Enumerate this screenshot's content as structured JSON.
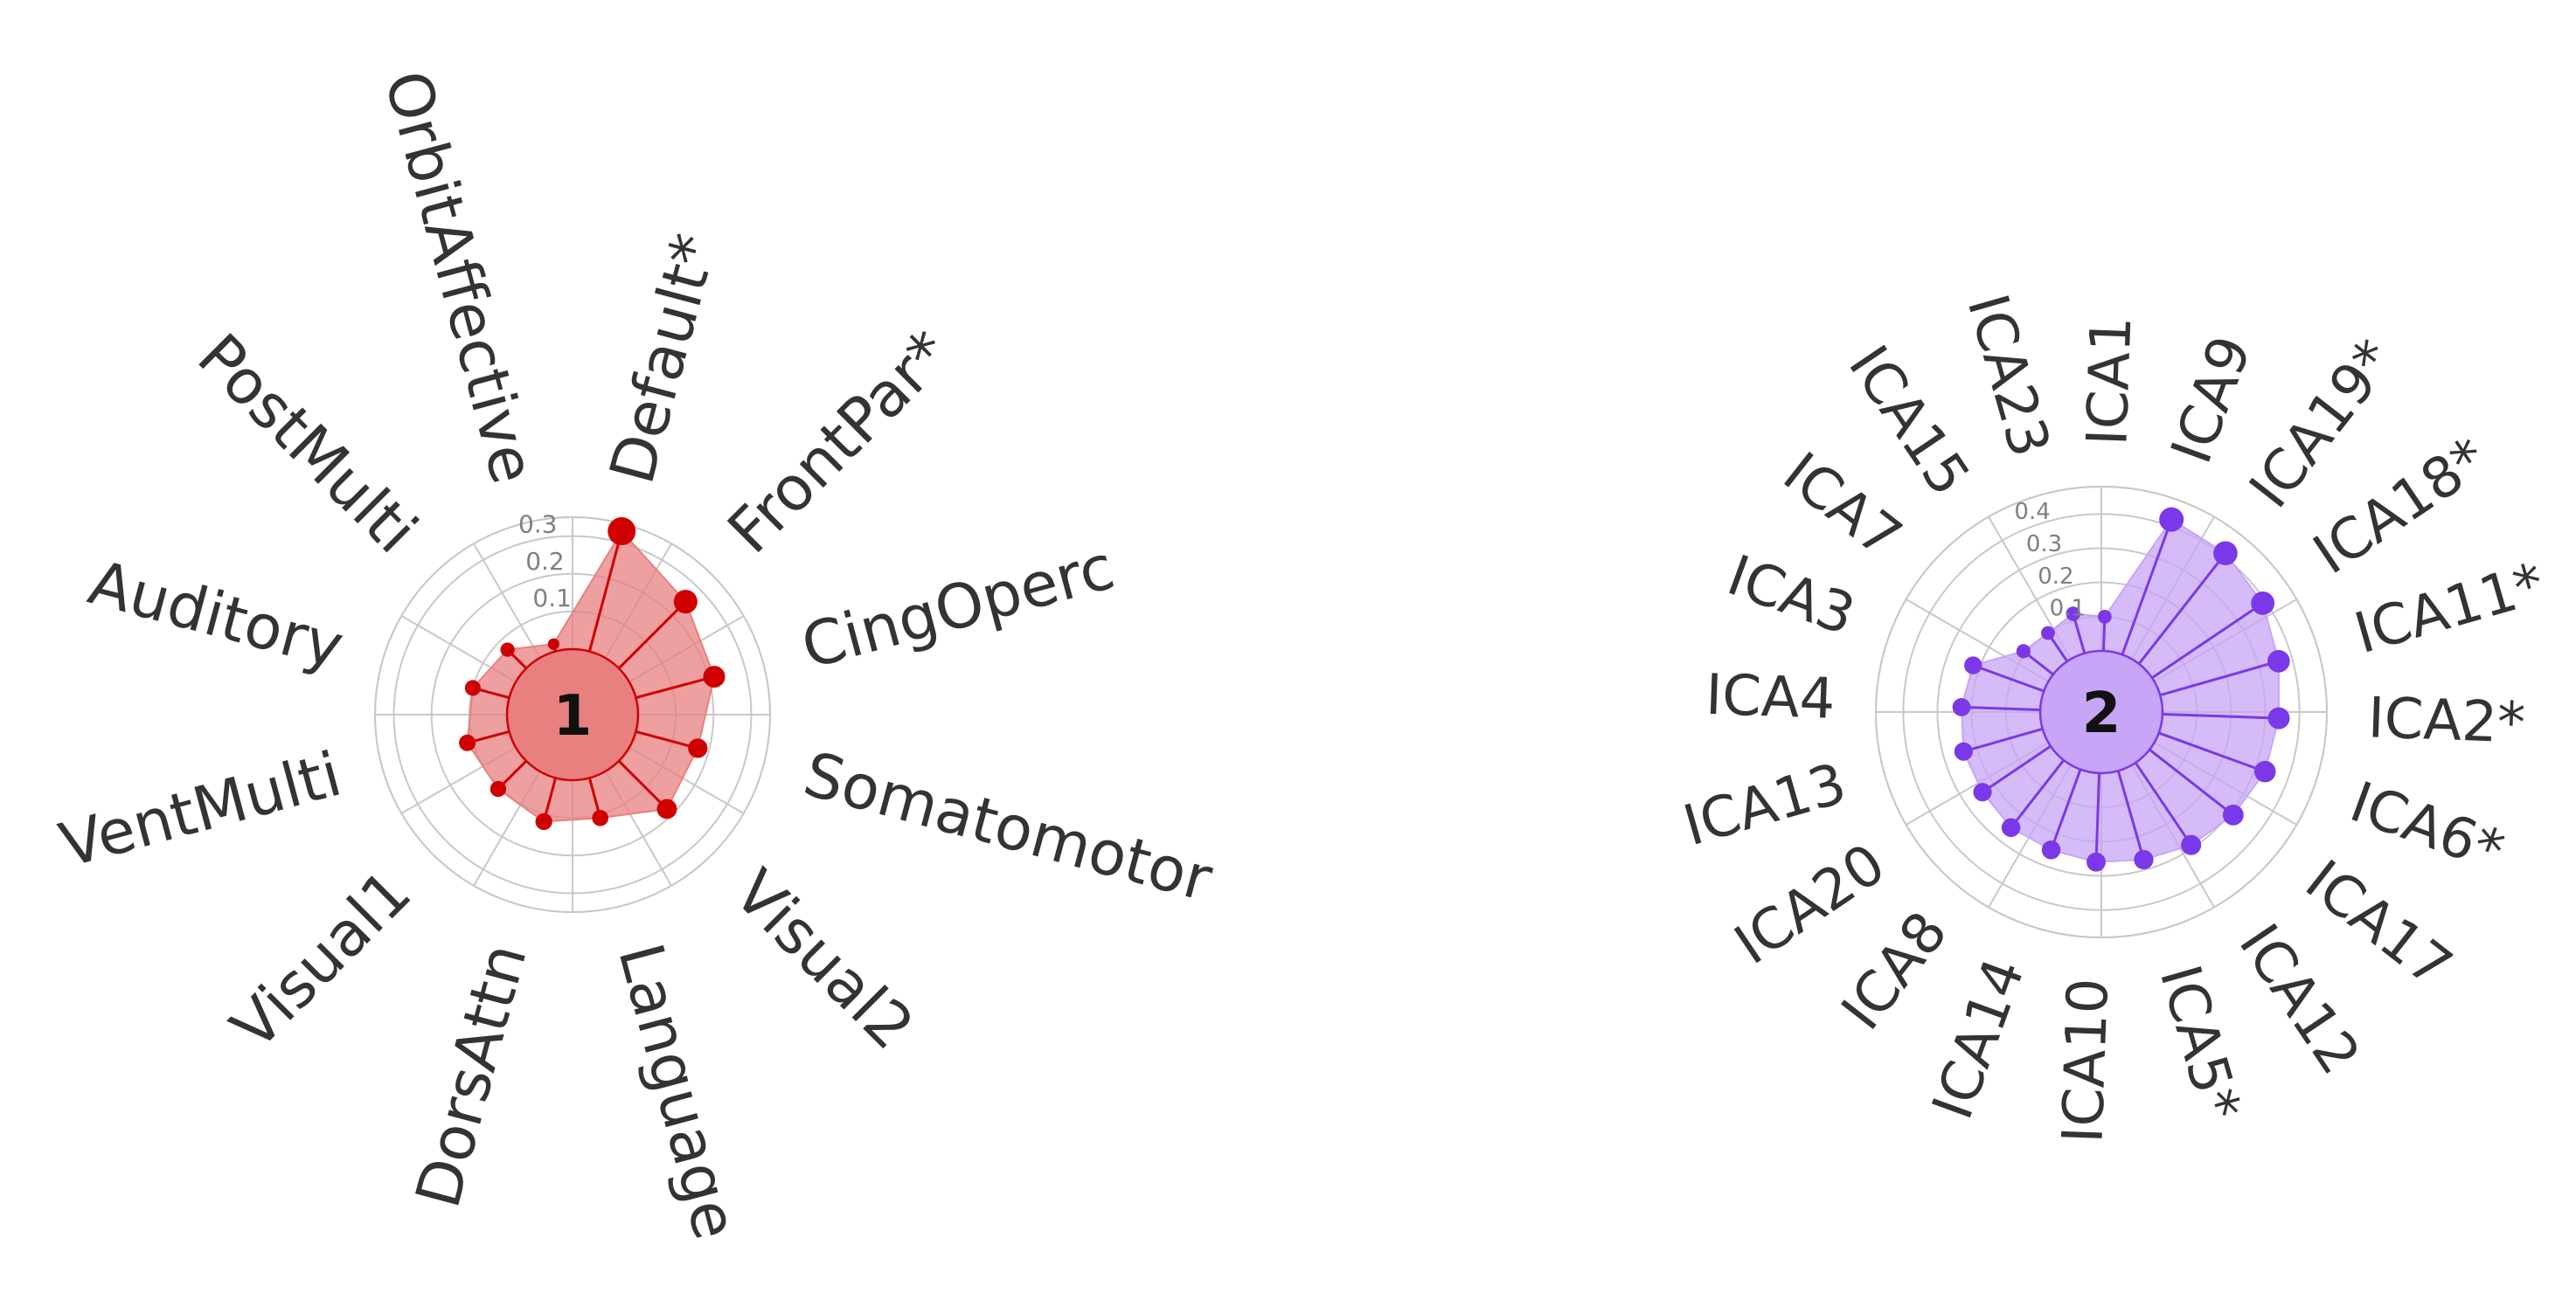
{
  "chart_data": [
    {
      "type": "radar",
      "center_label": "1",
      "color": "#d00000",
      "fill": "#e88080",
      "rlim": [
        0,
        0.35
      ],
      "rticks": [
        "0.1",
        "0.2",
        "0.3"
      ],
      "categories": [
        "Default*",
        "FrontPar*",
        "CingOperc",
        "Somatomotor",
        "Visual2",
        "Language",
        "DorsAttn",
        "Visual1",
        "VentMulti",
        "Auditory",
        "PostMulti",
        "OrbitAffective"
      ],
      "values": [
        0.33,
        0.25,
        0.215,
        0.17,
        0.18,
        0.11,
        0.12,
        0.105,
        0.115,
        0.1,
        0.07,
        0.02
      ]
    },
    {
      "type": "radar",
      "center_label": "2",
      "color": "#7b38e8",
      "fill": "#c7a5f7",
      "rlim": [
        0,
        0.48
      ],
      "rticks": [
        "0.1",
        "0.2",
        "0.3",
        "0.4"
      ],
      "categories": [
        "ICA9",
        "ICA19*",
        "ICA18*",
        "ICA11*",
        "ICA2*",
        "ICA6*",
        "ICA17",
        "ICA12",
        "ICA5*",
        "ICA10",
        "ICA14",
        "ICA8",
        "ICA20",
        "ICA13",
        "ICA4",
        "ICA3",
        "ICA7",
        "ICA15",
        "ICA23",
        "ICA1"
      ],
      "values": [
        0.42,
        0.41,
        0.39,
        0.36,
        0.34,
        0.33,
        0.31,
        0.29,
        0.27,
        0.26,
        0.25,
        0.25,
        0.24,
        0.24,
        0.23,
        0.22,
        0.11,
        0.1,
        0.12,
        0.1
      ]
    }
  ]
}
